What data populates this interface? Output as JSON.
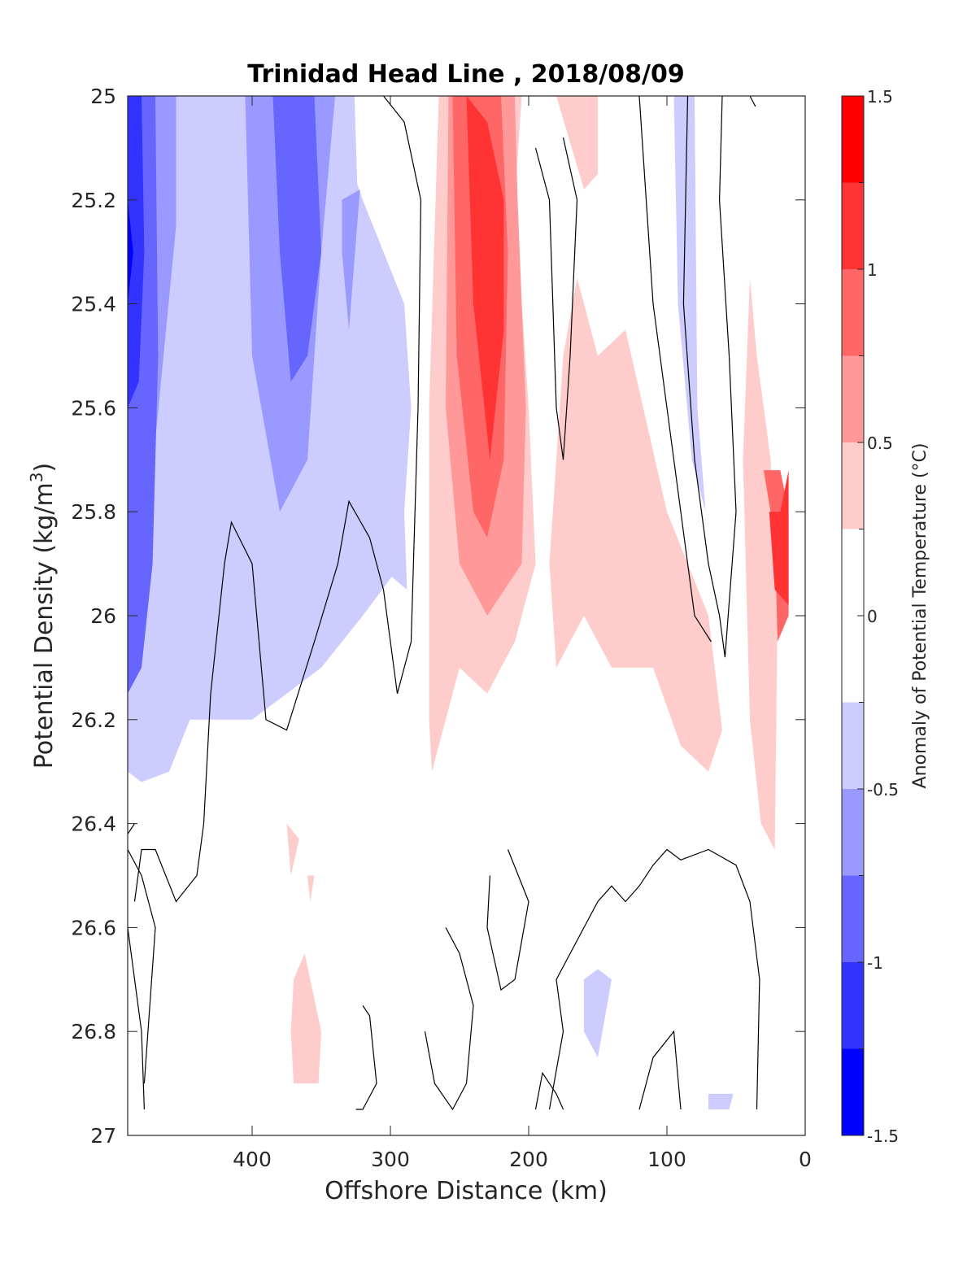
{
  "chart_data": {
    "type": "heatmap",
    "title": "Trinidad Head Line , 2018/08/09",
    "xlabel": "Offshore Distance (km)",
    "ylabel": "Potential Density (kg/m",
    "ylabel_sup": "3",
    "ylabel_close": ")",
    "xlim": [
      0,
      490
    ],
    "x_reversed": true,
    "xticks": [
      400,
      300,
      200,
      100,
      0
    ],
    "xtick_labels": [
      "400",
      "300",
      "200",
      "100",
      "0"
    ],
    "ylim": [
      25,
      27
    ],
    "y_reversed": true,
    "yticks": [
      25,
      25.2,
      25.4,
      25.6,
      25.8,
      26,
      26.2,
      26.4,
      26.6,
      26.8,
      27
    ],
    "ytick_labels": [
      "25",
      "25.2",
      "25.4",
      "25.6",
      "25.8",
      "26",
      "26.2",
      "26.4",
      "26.6",
      "26.8",
      "27"
    ],
    "colorbar": {
      "label": "Anomaly of Potential Temperature (°C)",
      "range": [
        -1.5,
        1.5
      ],
      "ticks": [
        1.5,
        1,
        0.5,
        0,
        -0.5,
        -1,
        -1.5
      ],
      "tick_labels": [
        "1.5",
        "1",
        "0.5",
        "0",
        "-0.5",
        "-1",
        "-1.5"
      ],
      "levels": [
        {
          "min": -1.5,
          "max": -1.25,
          "color": "#0000ff"
        },
        {
          "min": -1.25,
          "max": -1.0,
          "color": "#3333ff"
        },
        {
          "min": -1.0,
          "max": -0.75,
          "color": "#6666ff"
        },
        {
          "min": -0.75,
          "max": -0.5,
          "color": "#9999ff"
        },
        {
          "min": -0.5,
          "max": -0.25,
          "color": "#ccccff"
        },
        {
          "min": -0.25,
          "max": 0.25,
          "color": "#ffffff"
        },
        {
          "min": 0.25,
          "max": 0.5,
          "color": "#ffcccc"
        },
        {
          "min": 0.5,
          "max": 0.75,
          "color": "#ff9999"
        },
        {
          "min": 0.75,
          "max": 1.0,
          "color": "#ff6666"
        },
        {
          "min": 1.0,
          "max": 1.25,
          "color": "#ff3333"
        },
        {
          "min": 1.25,
          "max": 1.5,
          "color": "#ff0000"
        }
      ]
    },
    "contour_regions": [
      {
        "level": -0.375,
        "color": "#ccccff",
        "points": [
          [
            490,
            25
          ],
          [
            326,
            25
          ],
          [
            320,
            25.5
          ],
          [
            310,
            25.6
          ],
          [
            300,
            25.8
          ],
          [
            292,
            25.9
          ],
          [
            320,
            26.0
          ],
          [
            350,
            26.1
          ],
          [
            400,
            26.2
          ],
          [
            445,
            26.2
          ],
          [
            460,
            26.3
          ],
          [
            480,
            26.32
          ],
          [
            490,
            26.3
          ]
        ]
      },
      {
        "level": -0.375,
        "color": "#ccccff",
        "points": [
          [
            346,
            25
          ],
          [
            320,
            25.2
          ],
          [
            290,
            25.4
          ],
          [
            285,
            25.6
          ],
          [
            290,
            25.8
          ],
          [
            288,
            25.95
          ],
          [
            310,
            25.9
          ],
          [
            340,
            25.7
          ],
          [
            360,
            25.6
          ]
        ]
      },
      {
        "level": -0.625,
        "color": "#9999ff",
        "points": [
          [
            490,
            25
          ],
          [
            455,
            25
          ],
          [
            455,
            25.25
          ],
          [
            475,
            25.8
          ],
          [
            480,
            26.0
          ],
          [
            490,
            26.05
          ]
        ]
      },
      {
        "level": -0.625,
        "color": "#9999ff",
        "points": [
          [
            405,
            25
          ],
          [
            340,
            25
          ],
          [
            350,
            25.3
          ],
          [
            360,
            25.7
          ],
          [
            380,
            25.8
          ],
          [
            400,
            25.5
          ]
        ]
      },
      {
        "level": -0.625,
        "color": "#9999ff",
        "points": [
          [
            335,
            25.2
          ],
          [
            322,
            25.18
          ],
          [
            330,
            25.45
          ],
          [
            335,
            25.3
          ]
        ]
      },
      {
        "level": -0.875,
        "color": "#6666ff",
        "points": [
          [
            490,
            25
          ],
          [
            470,
            25
          ],
          [
            468,
            25.5
          ],
          [
            472,
            25.9
          ],
          [
            480,
            26.1
          ],
          [
            490,
            26.15
          ]
        ]
      },
      {
        "level": -0.875,
        "color": "#6666ff",
        "points": [
          [
            385,
            25
          ],
          [
            355,
            25
          ],
          [
            350,
            25.3
          ],
          [
            360,
            25.5
          ],
          [
            372,
            25.55
          ],
          [
            380,
            25.3
          ]
        ]
      },
      {
        "level": -1.125,
        "color": "#3333ff",
        "points": [
          [
            490,
            25
          ],
          [
            480,
            25
          ],
          [
            478,
            25.3
          ],
          [
            482,
            25.55
          ],
          [
            490,
            25.6
          ]
        ]
      },
      {
        "level": -1.375,
        "color": "#0000ff",
        "points": [
          [
            490,
            25.2
          ],
          [
            486,
            25.3
          ],
          [
            490,
            25.4
          ]
        ]
      },
      {
        "level": 0.375,
        "color": "#ffcccc",
        "points": [
          [
            265,
            25
          ],
          [
            272,
            25.6
          ],
          [
            272,
            26.2
          ],
          [
            270,
            26.3
          ],
          [
            250,
            26.1
          ],
          [
            230,
            26.15
          ],
          [
            210,
            26.05
          ],
          [
            195,
            25.9
          ],
          [
            200,
            25.6
          ],
          [
            210,
            25.2
          ],
          [
            205,
            25
          ]
        ]
      },
      {
        "level": 0.375,
        "color": "#ffcccc",
        "points": [
          [
            165,
            25.35
          ],
          [
            150,
            25.5
          ],
          [
            130,
            25.45
          ],
          [
            100,
            25.8
          ],
          [
            70,
            26.0
          ],
          [
            60,
            26.22
          ],
          [
            70,
            26.3
          ],
          [
            90,
            26.25
          ],
          [
            110,
            26.1
          ],
          [
            140,
            26.1
          ],
          [
            160,
            26.0
          ],
          [
            180,
            26.1
          ],
          [
            185,
            25.9
          ],
          [
            175,
            25.5
          ]
        ]
      },
      {
        "level": 0.375,
        "color": "#ffcccc",
        "points": [
          [
            40,
            25.35
          ],
          [
            45,
            25.7
          ],
          [
            40,
            26.2
          ],
          [
            32,
            26.4
          ],
          [
            22,
            26.45
          ],
          [
            20,
            26.0
          ],
          [
            25,
            25.7
          ],
          [
            35,
            25.5
          ]
        ]
      },
      {
        "level": 0.375,
        "color": "#ffcccc",
        "points": [
          [
            180,
            25
          ],
          [
            150,
            25
          ],
          [
            150,
            25.15
          ],
          [
            160,
            25.18
          ]
        ]
      },
      {
        "level": 0.375,
        "color": "#ffcccc",
        "points": [
          [
            375,
            26.4
          ],
          [
            366,
            26.43
          ],
          [
            372,
            26.5
          ]
        ]
      },
      {
        "level": 0.375,
        "color": "#ffcccc",
        "points": [
          [
            360,
            26.5
          ],
          [
            355,
            26.5
          ],
          [
            358,
            26.55
          ]
        ]
      },
      {
        "level": 0.375,
        "color": "#ffcccc",
        "points": [
          [
            370,
            26.7
          ],
          [
            362,
            26.65
          ],
          [
            350,
            26.8
          ],
          [
            352,
            26.9
          ],
          [
            370,
            26.9
          ],
          [
            372,
            26.8
          ]
        ]
      },
      {
        "level": 0.625,
        "color": "#ff9999",
        "points": [
          [
            258,
            25
          ],
          [
            260,
            25.6
          ],
          [
            250,
            25.9
          ],
          [
            230,
            26.0
          ],
          [
            205,
            25.9
          ],
          [
            202,
            25.6
          ],
          [
            208,
            25.2
          ],
          [
            210,
            25
          ]
        ]
      },
      {
        "level": 0.875,
        "color": "#ff6666",
        "points": [
          [
            255,
            25
          ],
          [
            252,
            25.5
          ],
          [
            240,
            25.8
          ],
          [
            230,
            25.85
          ],
          [
            218,
            25.7
          ],
          [
            215,
            25.3
          ],
          [
            220,
            25
          ]
        ]
      },
      {
        "level": 0.875,
        "color": "#ff6666",
        "points": [
          [
            30,
            25.72
          ],
          [
            22,
            25.85
          ],
          [
            20,
            26.05
          ],
          [
            12,
            26.0
          ],
          [
            12,
            25.8
          ],
          [
            18,
            25.72
          ]
        ]
      },
      {
        "level": 1.125,
        "color": "#ff3333",
        "points": [
          [
            245,
            25
          ],
          [
            240,
            25.4
          ],
          [
            228,
            25.7
          ],
          [
            218,
            25.45
          ],
          [
            218,
            25.2
          ],
          [
            230,
            25.05
          ]
        ]
      },
      {
        "level": 1.125,
        "color": "#ff3333",
        "points": [
          [
            26,
            25.8
          ],
          [
            22,
            25.95
          ],
          [
            12,
            25.98
          ],
          [
            12,
            25.72
          ],
          [
            18,
            25.8
          ]
        ]
      },
      {
        "level": -0.375,
        "color": "#ccccff",
        "points": [
          [
            95,
            25
          ],
          [
            80,
            25
          ],
          [
            78,
            25.6
          ],
          [
            72,
            25.8
          ],
          [
            82,
            25.7
          ],
          [
            92,
            25.4
          ]
        ]
      },
      {
        "level": -0.375,
        "color": "#ccccff",
        "points": [
          [
            160,
            26.7
          ],
          [
            150,
            26.68
          ],
          [
            140,
            26.7
          ],
          [
            150,
            26.85
          ],
          [
            160,
            26.8
          ]
        ]
      },
      {
        "level": -0.375,
        "color": "#ccccff",
        "points": [
          [
            65,
            26.92
          ],
          [
            52,
            26.92
          ],
          [
            55,
            26.95
          ],
          [
            70,
            26.95
          ],
          [
            70,
            26.92
          ]
        ]
      }
    ],
    "zero_contour_lines": [
      [
        [
          490,
          26.42
        ],
        [
          485,
          26.4
        ]
      ],
      [
        [
          490,
          26.6
        ],
        [
          480,
          26.8
        ],
        [
          478,
          26.95
        ]
      ],
      [
        [
          490,
          26.45
        ],
        [
          480,
          26.5
        ],
        [
          470,
          26.6
        ],
        [
          478,
          26.9
        ]
      ],
      [
        [
          305,
          25
        ],
        [
          290,
          25.05
        ],
        [
          278,
          25.2
        ],
        [
          280,
          25.6
        ],
        [
          285,
          26.05
        ],
        [
          295,
          26.15
        ],
        [
          305,
          25.95
        ],
        [
          315,
          25.85
        ],
        [
          330,
          25.78
        ],
        [
          338,
          25.9
        ],
        [
          355,
          26.05
        ],
        [
          375,
          26.22
        ],
        [
          390,
          26.2
        ],
        [
          400,
          25.9
        ],
        [
          415,
          25.82
        ],
        [
          420,
          25.9
        ],
        [
          430,
          26.15
        ],
        [
          435,
          26.4
        ],
        [
          440,
          26.5
        ],
        [
          455,
          26.55
        ],
        [
          470,
          26.45
        ],
        [
          480,
          26.45
        ],
        [
          485,
          26.55
        ]
      ],
      [
        [
          195,
          25.1
        ],
        [
          185,
          25.2
        ],
        [
          180,
          25.6
        ],
        [
          175,
          25.7
        ],
        [
          170,
          25.5
        ],
        [
          165,
          25.2
        ],
        [
          175,
          25.08
        ]
      ],
      [
        [
          85,
          25
        ],
        [
          88,
          25.4
        ],
        [
          80,
          25.7
        ],
        [
          70,
          25.9
        ],
        [
          62,
          26.0
        ],
        [
          58,
          26.08
        ],
        [
          50,
          25.8
        ],
        [
          55,
          25.5
        ],
        [
          62,
          25.2
        ],
        [
          60,
          25
        ]
      ],
      [
        [
          120,
          25
        ],
        [
          110,
          25.4
        ],
        [
          95,
          25.7
        ],
        [
          80,
          26.0
        ],
        [
          68,
          26.05
        ]
      ],
      [
        [
          40,
          25
        ],
        [
          36,
          25.02
        ]
      ],
      [
        [
          215,
          26.45
        ],
        [
          200,
          26.55
        ],
        [
          210,
          26.7
        ],
        [
          220,
          26.72
        ],
        [
          230,
          26.6
        ],
        [
          228,
          26.5
        ]
      ],
      [
        [
          260,
          26.6
        ],
        [
          250,
          26.65
        ],
        [
          240,
          26.75
        ],
        [
          245,
          26.9
        ],
        [
          255,
          26.95
        ],
        [
          268,
          26.9
        ],
        [
          275,
          26.8
        ]
      ],
      [
        [
          320,
          26.75
        ],
        [
          315,
          26.77
        ],
        [
          310,
          26.9
        ],
        [
          320,
          26.95
        ],
        [
          325,
          26.95
        ]
      ],
      [
        [
          195,
          26.95
        ],
        [
          190,
          26.88
        ],
        [
          180,
          26.92
        ],
        [
          175,
          26.95
        ]
      ],
      [
        [
          35,
          26.95
        ],
        [
          33,
          26.7
        ],
        [
          40,
          26.55
        ],
        [
          50,
          26.48
        ],
        [
          70,
          26.45
        ],
        [
          90,
          26.47
        ],
        [
          100,
          26.45
        ],
        [
          110,
          26.48
        ],
        [
          120,
          26.52
        ],
        [
          130,
          26.55
        ],
        [
          140,
          26.52
        ],
        [
          150,
          26.55
        ],
        [
          160,
          26.6
        ],
        [
          180,
          26.7
        ],
        [
          175,
          26.8
        ],
        [
          185,
          26.95
        ]
      ],
      [
        [
          90,
          26.95
        ],
        [
          95,
          26.8
        ],
        [
          110,
          26.85
        ],
        [
          120,
          26.95
        ]
      ]
    ]
  }
}
